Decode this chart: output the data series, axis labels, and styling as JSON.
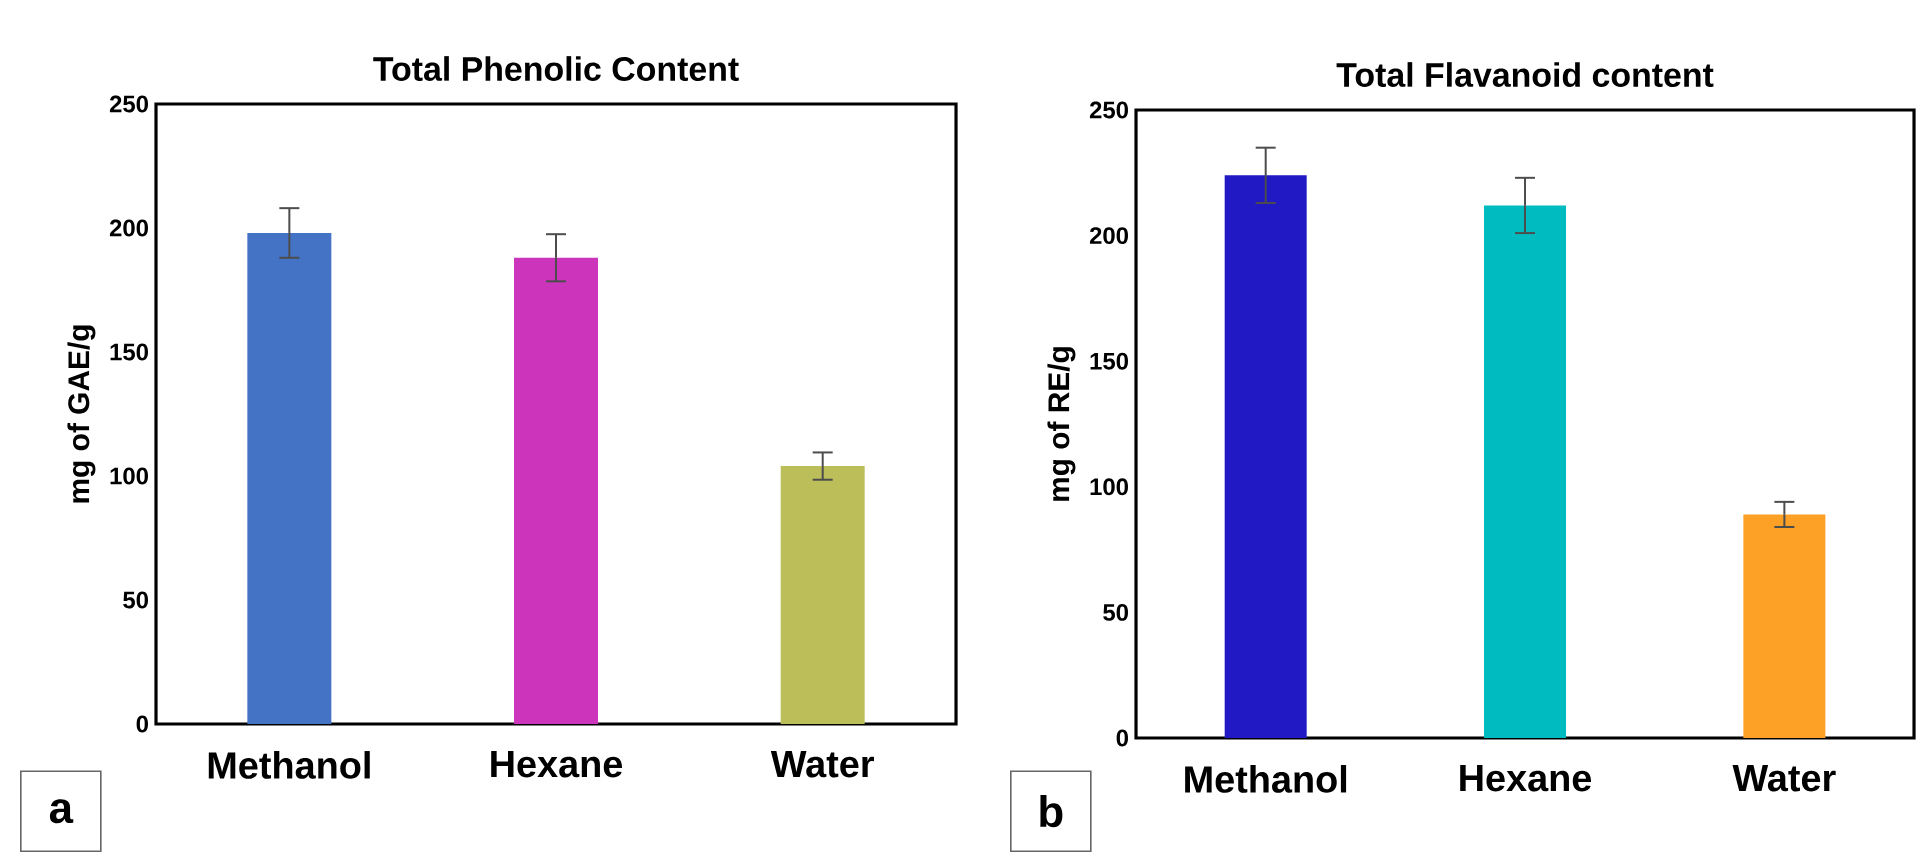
{
  "chart_data": [
    {
      "type": "bar",
      "title": "Total Phenolic Content",
      "ylabel": "mg of GAE/g",
      "categories": [
        "Methanol",
        "Hexane",
        "Water"
      ],
      "values": [
        198,
        188,
        104
      ],
      "errors": [
        10,
        9.5,
        5.5
      ],
      "colors": [
        "#4472c4",
        "#cc35bb",
        "#bcbe5a"
      ],
      "ylim": [
        0,
        250
      ],
      "yticks": [
        0,
        50,
        100,
        150,
        200,
        250
      ],
      "grid": false,
      "annotations": [
        "a"
      ]
    },
    {
      "type": "bar",
      "title": "Total Flavanoid content",
      "ylabel": "mg of RE/g",
      "categories": [
        "Methanol",
        "Hexane",
        "Water"
      ],
      "values": [
        224,
        212,
        89
      ],
      "errors": [
        11,
        11,
        5
      ],
      "colors": [
        "#2119c3",
        "#00bcc0",
        "#fca126"
      ],
      "ylim": [
        0,
        250
      ],
      "yticks": [
        0,
        50,
        100,
        150,
        200,
        250
      ],
      "grid": false,
      "annotations": [
        "b"
      ]
    }
  ]
}
